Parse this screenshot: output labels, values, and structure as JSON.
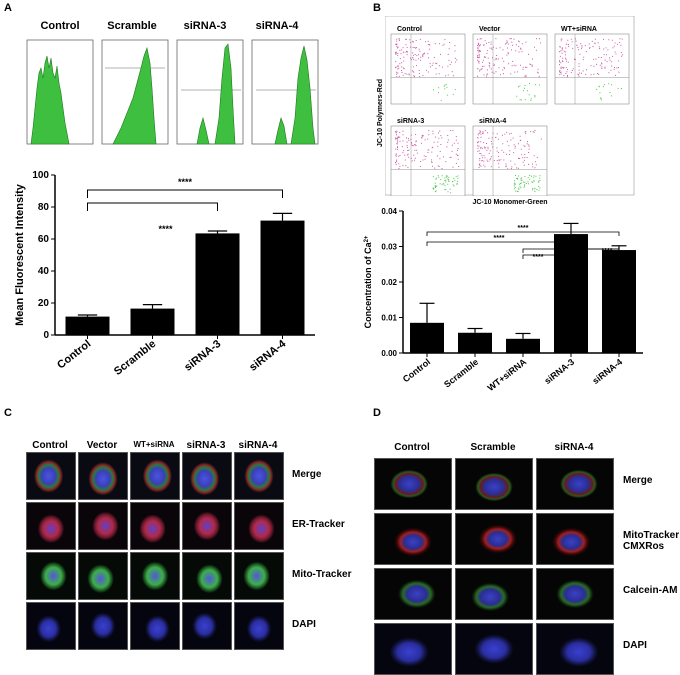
{
  "panels": {
    "a": "A",
    "b": "B",
    "c": "C",
    "d": "D"
  },
  "panel_a": {
    "histogram_labels": [
      "Control",
      "Scramble",
      "siRNA-3",
      "siRNA-4"
    ],
    "hist_color": "#3fbf3f"
  },
  "panel_b": {
    "flow_labels": [
      "Control",
      "Vector",
      "WT+siRNA",
      "siRNA-3",
      "siRNA-4"
    ],
    "flow_ylabel": "JC-10 Polymers-Red",
    "flow_xlabel": "JC-10 Monomer-Green",
    "dot_colors": {
      "red": "#c2318d",
      "green": "#3fbf3f"
    }
  },
  "chart_data": [
    {
      "type": "bar",
      "categories": [
        "Control",
        "Scramble",
        "siRNA-3",
        "siRNA-4"
      ],
      "values": [
        11.5,
        16.5,
        63.5,
        71.5
      ],
      "errors": [
        1.0,
        2.5,
        1.5,
        4.5
      ],
      "ylabel": "Mean Fluorescent Intensity",
      "ylim": [
        0,
        100
      ],
      "yticks": [
        "0",
        "20",
        "40",
        "60",
        "80",
        "100"
      ],
      "significance": [
        {
          "from": 0,
          "to": 2,
          "label": "****"
        },
        {
          "from": 0,
          "to": 3,
          "label": "****"
        }
      ]
    },
    {
      "type": "bar",
      "categories": [
        "Control",
        "Scramble",
        "WT+siRNA",
        "siRNA-3",
        "siRNA-4"
      ],
      "values": [
        0.0085,
        0.0057,
        0.004,
        0.0335,
        0.029
      ],
      "errors": [
        0.0055,
        0.0012,
        0.0015,
        0.003,
        0.0012
      ],
      "ylabel": "Concentration of Ca",
      "ylabel_sup": "2+",
      "ylim": [
        0,
        0.04
      ],
      "yticks": [
        "0.00",
        "0.01",
        "0.02",
        "0.03",
        "0.04"
      ],
      "significance": [
        {
          "from": 0,
          "to": 4,
          "label": "****"
        },
        {
          "from": 0,
          "to": 3,
          "label": "****"
        },
        {
          "from": 2,
          "to": 4,
          "label": ""
        },
        {
          "from": 2,
          "to": 3,
          "label": "****"
        },
        {
          "from": 3,
          "to": 4,
          "label": "****"
        }
      ]
    }
  ],
  "panel_c": {
    "columns": [
      "Control",
      "Vector",
      "WT+siRNA",
      "siRNA-3",
      "siRNA-4"
    ],
    "rows": [
      "Merge",
      "ER-Tracker",
      "Mito-Tracker",
      "DAPI"
    ]
  },
  "panel_d": {
    "columns": [
      "Control",
      "Scramble",
      "siRNA-4"
    ],
    "rows": [
      "Merge",
      "MitoTracker CMXRos",
      "Calcein-AM",
      "DAPI"
    ]
  }
}
